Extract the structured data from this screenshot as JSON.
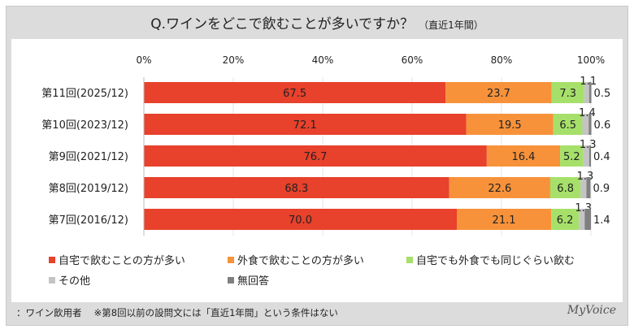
{
  "title": "Q.ワインをどこで飲むことが多いですか？",
  "title_sub": "（直近1年間）",
  "footer": "：ワイン飲用者　 ※第8回以前の設問文には「直近1年間」という条件はない",
  "logo": "MyVoice",
  "chart_data": {
    "type": "bar",
    "orientation": "horizontal",
    "stacked": true,
    "xlim": [
      0,
      100
    ],
    "x_ticks": [
      "0%",
      "20%",
      "40%",
      "60%",
      "80%",
      "100%"
    ],
    "grid": true,
    "legend_placement": "bottom",
    "categories": [
      "第11回(2025/12)",
      "第10回(2023/12)",
      "第9回(2021/12)",
      "第8回(2019/12)",
      "第7回(2016/12)"
    ],
    "series": [
      {
        "name": "自宅で飲むことの方が多い",
        "color": "#e8412c",
        "values": [
          67.5,
          72.1,
          76.7,
          68.3,
          70.0
        ]
      },
      {
        "name": "外食で飲むことの方が多い",
        "color": "#f7923a",
        "values": [
          23.7,
          19.5,
          16.4,
          22.6,
          21.1
        ]
      },
      {
        "name": "自宅でも外食でも同じぐらい飲む",
        "color": "#a6e06a",
        "values": [
          7.3,
          6.5,
          5.2,
          6.8,
          6.2
        ]
      },
      {
        "name": "その他",
        "color": "#c4c4c4",
        "values": [
          1.1,
          1.4,
          1.3,
          1.3,
          1.3
        ]
      },
      {
        "name": "無回答",
        "color": "#7f7f7f",
        "values": [
          0.5,
          0.6,
          0.4,
          0.9,
          1.4
        ]
      }
    ]
  }
}
